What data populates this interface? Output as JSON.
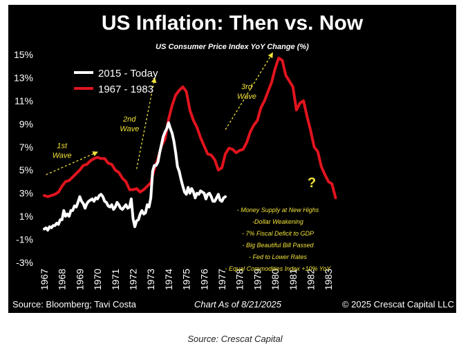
{
  "colors": {
    "background": "#000000",
    "today_line": "#ffffff",
    "history_line": "#e0141e",
    "annotation": "#f2e23a",
    "axis_text": "#ffffff"
  },
  "caption": "Source: Crescat Capital",
  "chart_data": {
    "type": "line",
    "title": "US Inflation: Then vs. Now",
    "subtitle": "US Consumer Price Index YoY Change (%)",
    "ylim": [
      -3,
      15
    ],
    "yticks": [
      "15%",
      "13%",
      "11%",
      "9%",
      "7%",
      "5%",
      "3%",
      "1%",
      "-1%",
      "-3%"
    ],
    "xticks": [
      "1967",
      "1968",
      "1969",
      "1970",
      "1971",
      "1972",
      "1973",
      "1974",
      "1975",
      "1976",
      "1977",
      "1978",
      "1979",
      "1980",
      "1981",
      "1982",
      "1983"
    ],
    "legend_position": "top-left",
    "grid": false,
    "series": [
      {
        "name": "2015 - Today",
        "color": "#ffffff",
        "x": [
          1967.0,
          1967.1,
          1967.2,
          1967.3,
          1967.4,
          1967.5,
          1967.6,
          1967.7,
          1967.8,
          1967.9,
          1968.0,
          1968.1,
          1968.2,
          1968.3,
          1968.4,
          1968.5,
          1968.6,
          1968.7,
          1968.8,
          1968.9,
          1969.0,
          1969.1,
          1969.2,
          1969.3,
          1969.4,
          1969.5,
          1969.6,
          1969.7,
          1969.8,
          1969.9,
          1970.0,
          1970.1,
          1970.2,
          1970.3,
          1970.4,
          1970.5,
          1970.6,
          1970.7,
          1970.8,
          1970.9,
          1971.0,
          1971.1,
          1971.2,
          1971.3,
          1971.4,
          1971.5,
          1971.6,
          1971.7,
          1971.8,
          1971.9,
          1972.0,
          1972.1,
          1972.2,
          1972.3,
          1972.4,
          1972.5,
          1972.6,
          1972.7,
          1972.8,
          1972.9,
          1973.0,
          1973.1,
          1973.2,
          1973.3,
          1973.4,
          1973.5,
          1973.6,
          1973.7,
          1973.8,
          1973.9,
          1974.0,
          1974.1,
          1974.2,
          1974.3,
          1974.4,
          1974.5,
          1974.6,
          1974.7,
          1974.8,
          1974.9,
          1975.0,
          1975.1,
          1975.2,
          1975.3,
          1975.4,
          1975.5,
          1975.6,
          1975.7,
          1975.8,
          1975.9,
          1976.0,
          1976.1,
          1976.2,
          1976.3,
          1976.4,
          1976.5,
          1976.6,
          1976.7,
          1976.8,
          1976.9,
          1977.0,
          1977.1,
          1977.2
        ],
        "values": [
          -0.1,
          0.0,
          -0.2,
          0.1,
          0.0,
          0.2,
          0.2,
          0.4,
          0.3,
          0.7,
          0.7,
          1.5,
          1.0,
          1.2,
          1.0,
          1.5,
          1.5,
          1.9,
          1.8,
          2.2,
          2.7,
          2.3,
          2.1,
          1.7,
          2.1,
          2.3,
          2.4,
          2.5,
          2.3,
          2.6,
          2.5,
          2.8,
          2.9,
          2.7,
          2.3,
          2.2,
          1.9,
          1.8,
          2.0,
          1.6,
          1.8,
          2.2,
          2.0,
          1.7,
          1.6,
          1.8,
          2.0,
          1.7,
          1.8,
          2.5,
          0.8,
          0.1,
          0.6,
          0.7,
          1.2,
          1.5,
          1.2,
          1.3,
          2.0,
          1.8,
          2.6,
          4.9,
          5.4,
          5.4,
          5.7,
          6.5,
          7.2,
          7.9,
          8.3,
          8.6,
          9.1,
          8.6,
          8.2,
          7.5,
          6.5,
          5.3,
          4.9,
          4.2,
          3.6,
          3.1,
          2.9,
          3.5,
          3.0,
          3.4,
          3.1,
          2.6,
          3.0,
          2.9,
          3.2,
          3.1,
          3.0,
          2.5,
          2.9,
          3.0,
          2.7,
          2.3,
          2.3,
          2.6,
          2.9,
          2.4,
          2.3,
          2.6,
          2.7
        ]
      },
      {
        "name": "1967 - 1983",
        "color": "#e0141e",
        "x": [
          1967.0,
          1967.2,
          1967.4,
          1967.6,
          1967.8,
          1968.0,
          1968.2,
          1968.4,
          1968.6,
          1968.8,
          1969.0,
          1969.2,
          1969.4,
          1969.6,
          1969.8,
          1970.0,
          1970.2,
          1970.4,
          1970.6,
          1970.8,
          1971.0,
          1971.2,
          1971.4,
          1971.6,
          1971.8,
          1972.0,
          1972.2,
          1972.4,
          1972.6,
          1972.8,
          1973.0,
          1973.2,
          1973.4,
          1973.6,
          1973.8,
          1974.0,
          1974.2,
          1974.4,
          1974.6,
          1974.8,
          1975.0,
          1975.2,
          1975.4,
          1975.6,
          1975.8,
          1976.0,
          1976.2,
          1976.4,
          1976.6,
          1976.8,
          1977.0,
          1977.2,
          1977.4,
          1977.6,
          1977.8,
          1978.0,
          1978.2,
          1978.4,
          1978.6,
          1978.8,
          1979.0,
          1979.2,
          1979.4,
          1979.6,
          1979.8,
          1980.0,
          1980.2,
          1980.4,
          1980.6,
          1980.8,
          1981.0,
          1981.2,
          1981.4,
          1981.6,
          1981.8,
          1982.0,
          1982.2,
          1982.4,
          1982.6,
          1982.8,
          1983.0,
          1983.2,
          1983.4
        ],
        "values": [
          2.8,
          2.7,
          2.8,
          2.9,
          3.1,
          3.6,
          4.0,
          4.1,
          4.4,
          4.7,
          5.0,
          5.4,
          5.5,
          5.8,
          6.0,
          6.1,
          6.0,
          6.0,
          5.6,
          5.5,
          5.0,
          4.8,
          4.3,
          4.0,
          3.3,
          3.3,
          3.4,
          3.1,
          3.3,
          3.6,
          3.9,
          5.1,
          6.0,
          7.1,
          7.7,
          9.4,
          10.6,
          11.5,
          11.9,
          12.2,
          11.8,
          10.2,
          9.3,
          8.7,
          7.8,
          7.1,
          6.4,
          6.3,
          5.9,
          5.0,
          5.2,
          6.4,
          6.9,
          6.8,
          6.5,
          6.7,
          6.8,
          7.4,
          8.3,
          8.9,
          9.3,
          10.4,
          11.0,
          11.8,
          12.6,
          13.8,
          14.7,
          14.5,
          13.2,
          12.7,
          12.2,
          10.2,
          10.8,
          11.0,
          9.6,
          8.4,
          7.0,
          6.6,
          5.3,
          4.6,
          4.0,
          3.8,
          2.6
        ]
      }
    ],
    "wave_labels": [
      "1st\nWave",
      "2nd\nWave",
      "3rd\nWave"
    ],
    "question_mark": "?",
    "notes": [
      "- Money Supply at New Highs",
      "-Dollar Weakening",
      "- 7% Fiscal Deficit to GDP",
      "- Big Beautiful Bill Passed",
      "- Fed to Lower Rates",
      "- Equal Commodities Index +10% YoY"
    ],
    "footer": {
      "source": "Source: Bloomberg; Tavi Costa",
      "date": "Chart As of 8/21/2025",
      "copyright": "© 2025 Crescat Capital LLC"
    }
  }
}
